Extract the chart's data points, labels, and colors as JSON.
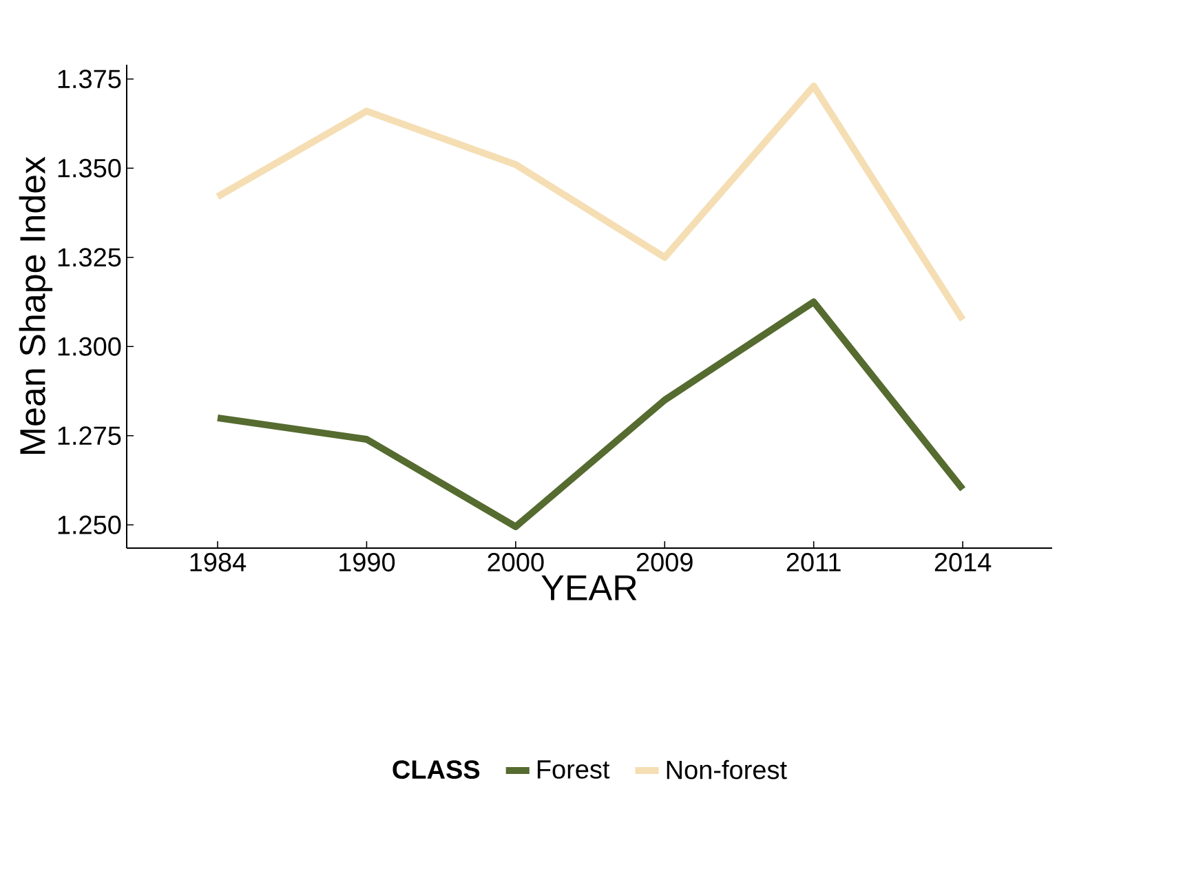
{
  "chart_data": {
    "type": "line",
    "xlabel": "YEAR",
    "ylabel": "Mean Shape Index",
    "legend_title": "CLASS",
    "legend": "bottom",
    "grid": false,
    "categories": [
      "1984",
      "1990",
      "2000",
      "2009",
      "2011",
      "2014"
    ],
    "series": [
      {
        "name": "Forest",
        "color": "#556b2f",
        "values": [
          1.28,
          1.274,
          1.2495,
          1.285,
          1.3125,
          1.26
        ]
      },
      {
        "name": "Non-forest",
        "color": "#f5deb3",
        "values": [
          1.342,
          1.366,
          1.351,
          1.325,
          1.373,
          1.3075
        ]
      }
    ],
    "ylim": [
      1.2435,
      1.379
    ],
    "yticks": [
      {
        "value": 1.25,
        "label": "1.250"
      },
      {
        "value": 1.275,
        "label": "1.275"
      },
      {
        "value": 1.3,
        "label": "1.300"
      },
      {
        "value": 1.325,
        "label": "1.325"
      },
      {
        "value": 1.35,
        "label": "1.350"
      },
      {
        "value": 1.375,
        "label": "1.375"
      }
    ]
  }
}
